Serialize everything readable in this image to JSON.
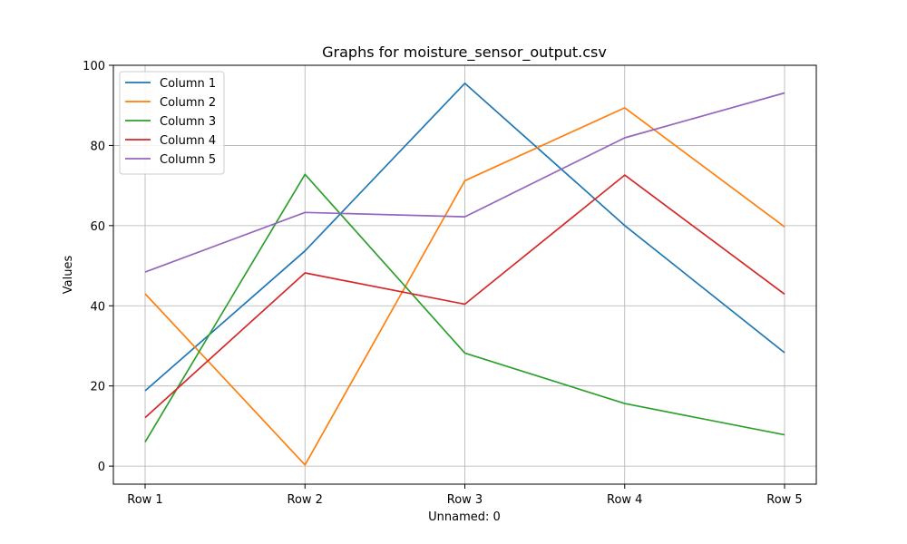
{
  "chart_data": {
    "type": "line",
    "title": "Graphs for moisture_sensor_output.csv",
    "xlabel": "Unnamed: 0",
    "ylabel": "Values",
    "categories": [
      "Row 1",
      "Row 2",
      "Row 3",
      "Row 4",
      "Row 5"
    ],
    "ylim": [
      -4.5,
      100
    ],
    "yticks": [
      0,
      20,
      40,
      60,
      80,
      100
    ],
    "grid": true,
    "legend_position": "top-left",
    "series": [
      {
        "name": "Column 1",
        "color": "#1f77b4",
        "values": [
          18.8,
          53.7,
          95.5,
          60.0,
          28.3
        ]
      },
      {
        "name": "Column 2",
        "color": "#ff7f0e",
        "values": [
          43.0,
          0.3,
          71.2,
          89.4,
          59.7
        ]
      },
      {
        "name": "Column 3",
        "color": "#2ca02c",
        "values": [
          6.0,
          72.8,
          28.2,
          15.6,
          7.8
        ]
      },
      {
        "name": "Column 4",
        "color": "#d62728",
        "values": [
          12.1,
          48.2,
          40.4,
          72.6,
          42.9
        ]
      },
      {
        "name": "Column 5",
        "color": "#9467bd",
        "values": [
          48.4,
          63.3,
          62.2,
          81.9,
          93.1
        ]
      }
    ]
  }
}
